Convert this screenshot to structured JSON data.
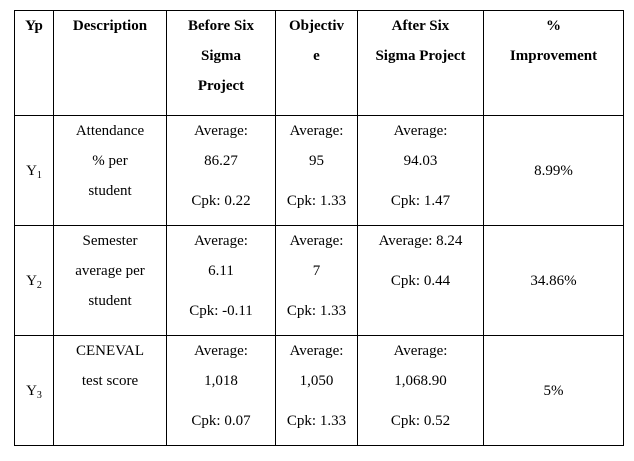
{
  "table": {
    "headers": {
      "yp": "Yp",
      "description": "Description",
      "before": [
        "Before Six",
        "Sigma",
        "Project"
      ],
      "objective": [
        "Objectiv",
        "e"
      ],
      "after": [
        "After Six",
        "Sigma Project"
      ],
      "improvement": [
        "%",
        "Improvement"
      ]
    },
    "rows": [
      {
        "yp_letter": "Y",
        "yp_sub": "1",
        "description": [
          "Attendance",
          "% per",
          "student"
        ],
        "before": {
          "average_label": "Average:",
          "average": "86.27",
          "cpk": "Cpk: 0.22"
        },
        "objective": {
          "average_label": "Average:",
          "average": "95",
          "cpk": "Cpk: 1.33"
        },
        "after": {
          "average_label": "Average:",
          "average": "94.03",
          "cpk": "Cpk: 1.47"
        },
        "improvement": "8.99%"
      },
      {
        "yp_letter": "Y",
        "yp_sub": "2",
        "description": [
          "Semester",
          "average per",
          "student"
        ],
        "before": {
          "average_label": "Average:",
          "average": "6.11",
          "cpk": "Cpk: -0.11"
        },
        "objective": {
          "average_label": "Average:",
          "average": "7",
          "cpk": "Cpk: 1.33"
        },
        "after": {
          "average_line": "Average: 8.24",
          "cpk": "Cpk: 0.44"
        },
        "improvement": "34.86%"
      },
      {
        "yp_letter": "Y",
        "yp_sub": "3",
        "description": [
          "CENEVAL",
          "test score"
        ],
        "before": {
          "average_label": "Average:",
          "average": "1,018",
          "cpk": "Cpk: 0.07"
        },
        "objective": {
          "average_label": "Average:",
          "average": "1,050",
          "cpk": "Cpk: 1.33"
        },
        "after": {
          "average_label": "Average:",
          "average": "1,068.90",
          "cpk": "Cpk: 0.52"
        },
        "improvement": "5%"
      }
    ]
  }
}
